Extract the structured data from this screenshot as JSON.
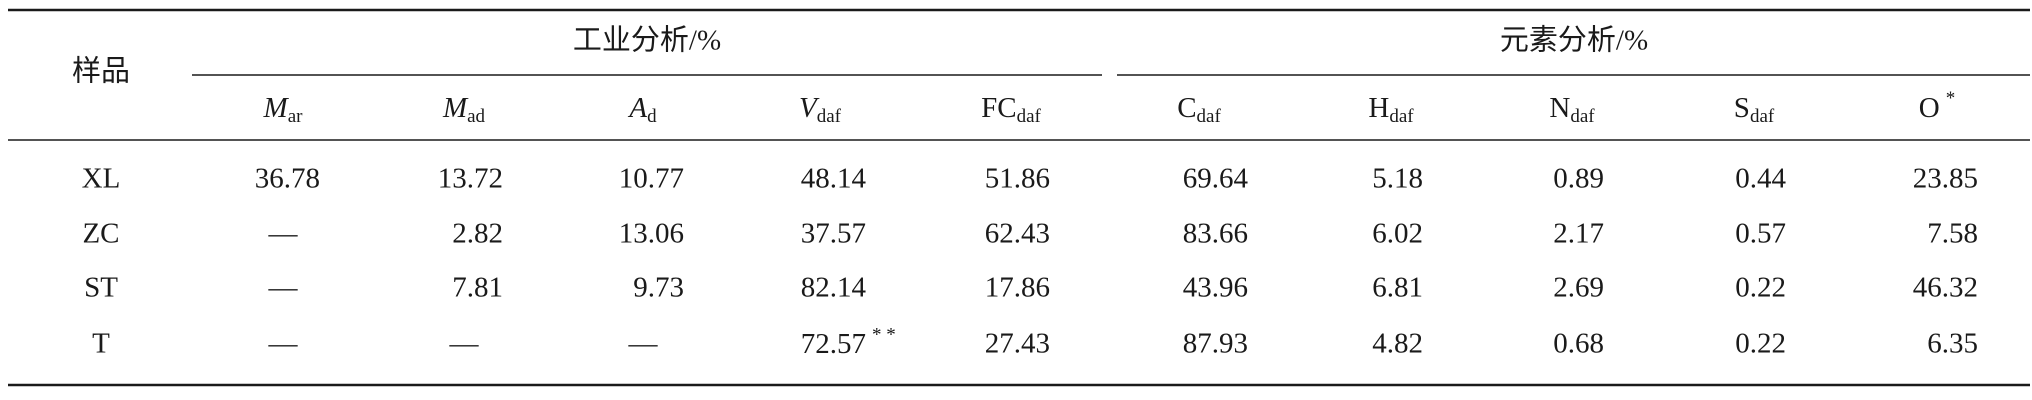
{
  "table": {
    "stub_header": "样品",
    "groups": [
      {
        "label": "工业分析/%"
      },
      {
        "label": "元素分析/%"
      }
    ],
    "columns": [
      {
        "symbol": "M",
        "sub": "ar",
        "italic": true
      },
      {
        "symbol": "M",
        "sub": "ad",
        "italic": true
      },
      {
        "symbol": "A",
        "sub": "d",
        "italic": true
      },
      {
        "symbol": "V",
        "sub": "daf",
        "italic": true
      },
      {
        "symbol": "FC",
        "sub": "daf"
      },
      {
        "symbol": "C",
        "sub": "daf"
      },
      {
        "symbol": "H",
        "sub": "daf"
      },
      {
        "symbol": "N",
        "sub": "daf"
      },
      {
        "symbol": "S",
        "sub": "daf"
      },
      {
        "symbol": "O",
        "sup": "*"
      }
    ],
    "rows": [
      {
        "sample": "XL",
        "cells": [
          "36.78",
          "13.72",
          "10.77",
          "48.14",
          "51.86",
          "69.64",
          "5.18",
          "0.89",
          "0.44",
          "23.85"
        ]
      },
      {
        "sample": "ZC",
        "cells": [
          "—",
          "2.82",
          "13.06",
          "37.57",
          "62.43",
          "83.66",
          "6.02",
          "2.17",
          "0.57",
          "7.58"
        ]
      },
      {
        "sample": "ST",
        "cells": [
          "—",
          "7.81",
          "9.73",
          "82.14",
          "17.86",
          "43.96",
          "6.81",
          "2.69",
          "0.22",
          "46.32"
        ]
      },
      {
        "sample": "T",
        "cells": [
          "—",
          "—",
          "—",
          {
            "text": "72.57",
            "sup": "* *"
          },
          "27.43",
          "87.93",
          "4.82",
          "0.68",
          "0.22",
          "6.35"
        ]
      }
    ]
  }
}
